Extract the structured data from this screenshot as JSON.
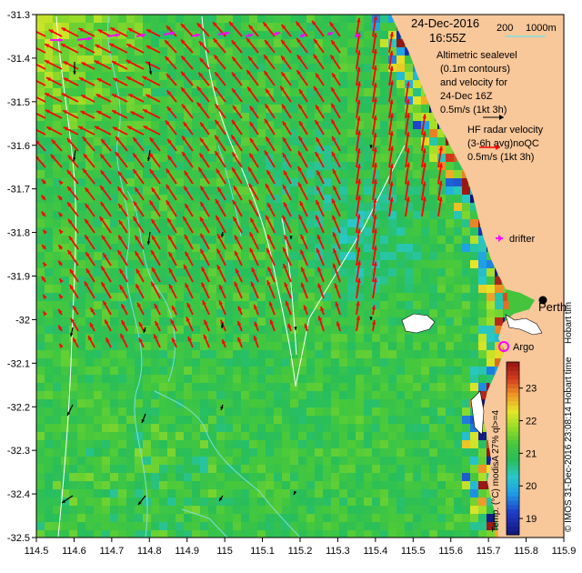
{
  "map": {
    "date": "24-Dec-2016",
    "time": "16:55Z",
    "lon_ticks": [
      "114.5",
      "114.6",
      "114.7",
      "114.8",
      "114.9",
      "115",
      "115.1",
      "115.2",
      "115.3",
      "115.4",
      "115.5",
      "115.6",
      "115.7",
      "115.8",
      "115.9"
    ],
    "lat_ticks": [
      "-31.3",
      "-31.4",
      "-31.5",
      "-31.6",
      "-31.7",
      "-31.8",
      "-31.9",
      "-32",
      "-32.1",
      "-32.2",
      "-32.3",
      "-32.4",
      "-32.5"
    ],
    "lon_range": [
      114.5,
      115.9
    ],
    "lat_range": [
      -32.5,
      -31.3
    ],
    "bathymetry_legend": {
      "label_200": "200",
      "label_1000": "1000m",
      "color": "#7fdfe0"
    },
    "altimetry_text": [
      "Altimetric sealevel",
      "(0.1m contours)",
      "and velocity for",
      "24-Dec 16Z",
      "0.5m/s (1kt 3h)"
    ],
    "hf_radar_text": [
      "HF radar velocity",
      "(3-6h avg)noQC",
      "0.5m/s (1kt 3h)"
    ],
    "drifter_label": "drifter",
    "perth_label": "Perth",
    "argo_label": "Argo",
    "hobart_label": "Hobart tim",
    "colorbar": {
      "label": "Temp. (°C) modisA 27% ql>=4",
      "ticks": [
        "19",
        "20",
        "21",
        "22",
        "23"
      ],
      "range": [
        18.5,
        23.8
      ]
    },
    "credit": "© IMOS 31-Dec-2016 23:08:14 Hobart time",
    "colors": {
      "land": "#f8c79a",
      "hf_arrow": "#ff0000",
      "alt_arrow": "#000000",
      "drifter": "#ff00ff",
      "contour": "#ffffff",
      "bathy": "#7fdfe0"
    }
  }
}
